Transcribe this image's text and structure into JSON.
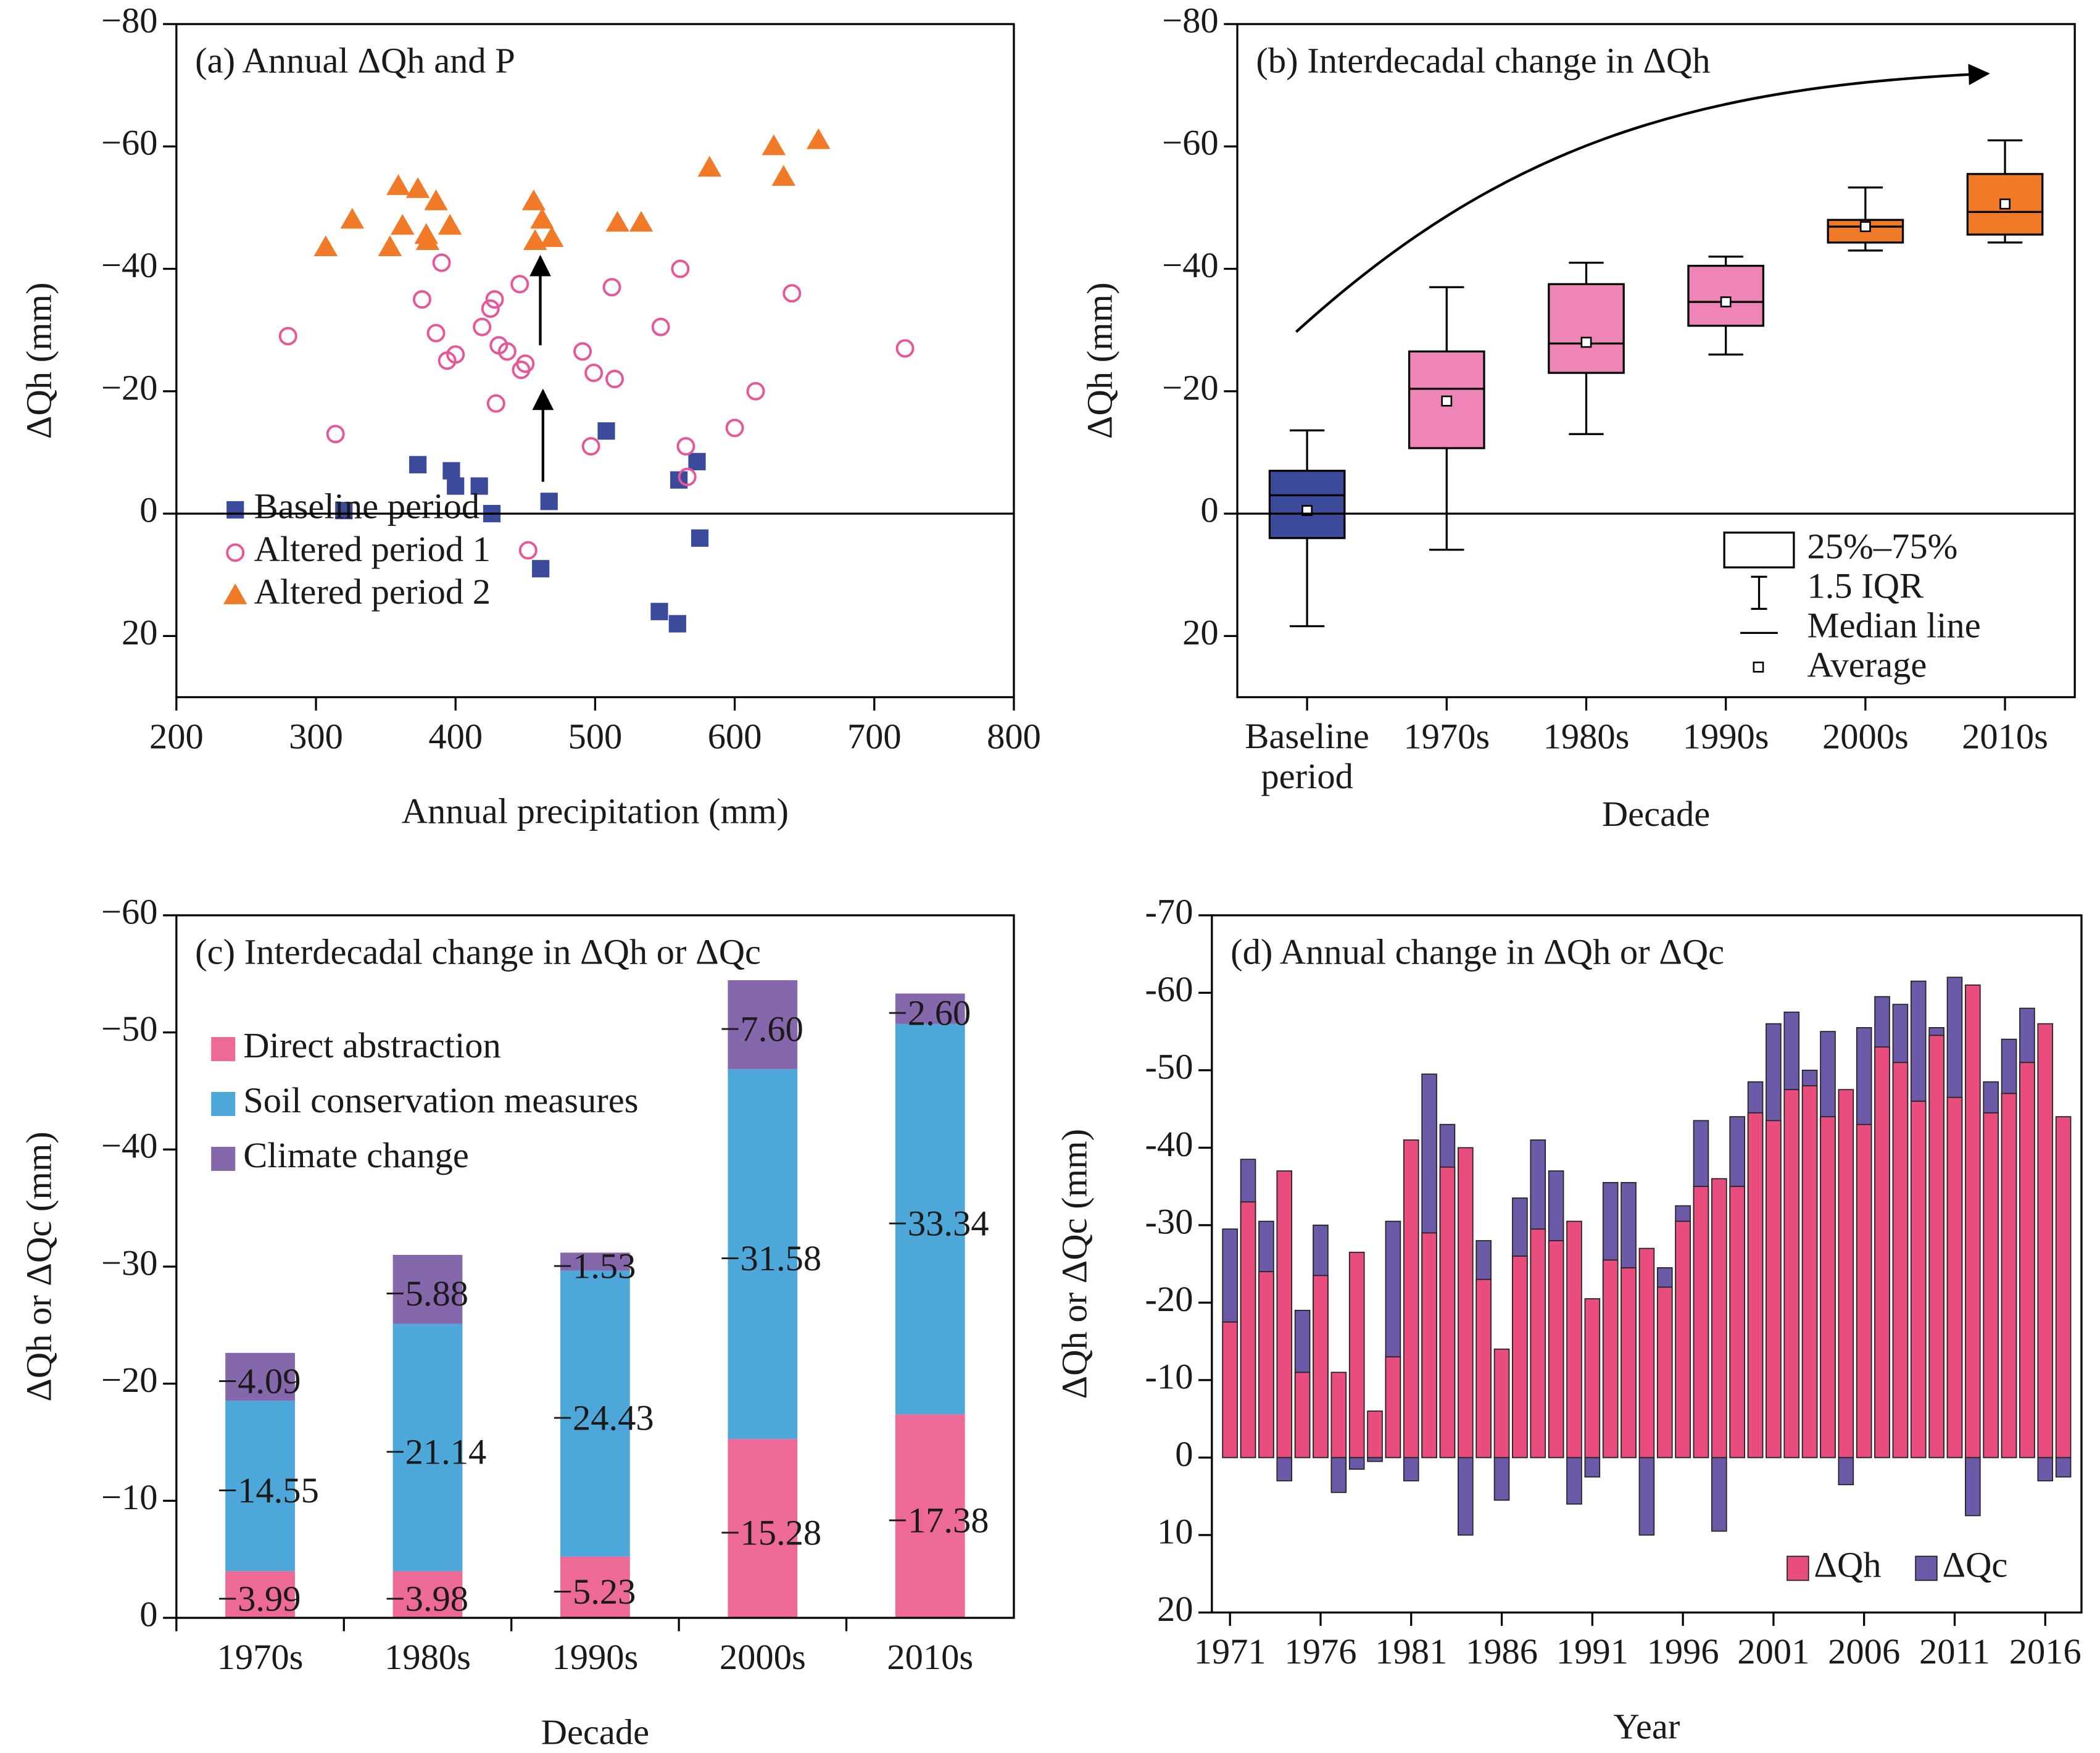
{
  "chart_data": [
    {
      "type": "scatter",
      "title": "(a) Annual ΔQh and P",
      "x_label": "Annual precipitation (mm)",
      "y_label": "ΔQh (mm)",
      "xlim": [
        200,
        800
      ],
      "xticks": [
        200,
        300,
        400,
        500,
        600,
        700,
        800
      ],
      "ylim": [
        30,
        -80
      ],
      "yticks": [
        {
          "value": -80,
          "label": "−80"
        },
        {
          "value": -60,
          "label": "−60"
        },
        {
          "value": -40,
          "label": "−40"
        },
        {
          "value": -20,
          "label": "−20"
        },
        0,
        20
      ],
      "zero_line": true,
      "legend": "lower left",
      "series": [
        {
          "name": "Baseline period",
          "color": "#3b4a9b",
          "marker": "square",
          "x": [
            320,
            373,
            397,
            400,
            417,
            426,
            467,
            461,
            508,
            546,
            559,
            560,
            573,
            575
          ],
          "y": [
            -0.5,
            -8,
            -7,
            -4.5,
            -4.5,
            0,
            -2,
            9,
            -13.5,
            16,
            18,
            -5.5,
            -8.5,
            4
          ]
        },
        {
          "name": "Altered period 1",
          "color": "#e8559a",
          "marker": "circle",
          "x": [
            280,
            314,
            376,
            386,
            390,
            394,
            400,
            419,
            425,
            429,
            428,
            431,
            437,
            446,
            447,
            450,
            452,
            491,
            497,
            499,
            512,
            514,
            547,
            561,
            565,
            566,
            600,
            615,
            641,
            722
          ],
          "y": [
            -29,
            -13,
            -35,
            -29.5,
            -41,
            -25,
            -26,
            -30.5,
            -33.5,
            -18,
            -35,
            -27.5,
            -26.5,
            -37.5,
            -23.5,
            -24.5,
            6,
            -26.5,
            -11,
            -23,
            -37,
            -22,
            -30.5,
            -40,
            -11,
            -6,
            -14,
            -20,
            -36,
            -27
          ]
        },
        {
          "name": "Altered period 2",
          "color": "#f07a28",
          "marker": "triangle",
          "x": [
            307,
            326,
            353,
            359,
            362,
            373,
            379,
            380,
            386,
            396,
            456,
            457,
            462,
            469,
            516,
            533,
            582,
            628,
            635,
            660
          ],
          "y": [
            -43.5,
            -48,
            -43.5,
            -53.5,
            -47,
            -53,
            -45.5,
            -44.5,
            -51,
            -47,
            -51,
            -44.5,
            -48,
            -45,
            -47.5,
            -47.5,
            -56.5,
            -60,
            -55,
            -61
          ]
        }
      ]
    },
    {
      "type": "box",
      "title": "(b) Interdecadal change in ΔQh",
      "x_label": "Decade",
      "y_label": "ΔQh (mm)",
      "categories": [
        "Baseline period",
        "1970s",
        "1980s",
        "1990s",
        "2000s",
        "2010s"
      ],
      "ylim": [
        30,
        -80
      ],
      "yticks": [
        {
          "value": -80,
          "label": "−80"
        },
        {
          "value": -60,
          "label": "−60"
        },
        {
          "value": -40,
          "label": "−40"
        },
        {
          "value": -20,
          "label": "−20"
        },
        0,
        20
      ],
      "zero_line": true,
      "legend": "lower right",
      "colors": [
        "#3b4a9b",
        "#ef85b6",
        "#ef85b6",
        "#ef85b6",
        "#f07a28",
        "#f07a28"
      ],
      "whisker_low": [
        18.4,
        5.9,
        -13,
        -26,
        -43,
        -44.3
      ],
      "q1": [
        4,
        -10.7,
        -23,
        -30.7,
        -44.3,
        -45.6
      ],
      "median": [
        -3,
        -20.4,
        -27.8,
        -34.6,
        -46.9,
        -49.3
      ],
      "q3": [
        -7,
        -26.5,
        -37.5,
        -40.5,
        -48,
        -55.5
      ],
      "whisker_high": [
        -13.6,
        -37,
        -41,
        -42,
        -53.3,
        -61
      ],
      "mean": [
        -0.5,
        -18.4,
        -28,
        -34.6,
        -46.9,
        -50.6
      ],
      "legend_labels": [
        "25%–75%",
        "1.5 IQR",
        "Median line",
        "Average"
      ]
    },
    {
      "type": "bar",
      "stacked": true,
      "title": "(c) Interdecadal change in ΔQh or ΔQc",
      "x_label": "Decade",
      "y_label": "ΔQh or ΔQc (mm)",
      "categories": [
        "1970s",
        "1980s",
        "1990s",
        "2000s",
        "2010s"
      ],
      "ylim": [
        0,
        -60
      ],
      "yticks": [
        0,
        {
          "value": -10,
          "label": "−10"
        },
        {
          "value": -20,
          "label": "−20"
        },
        {
          "value": -30,
          "label": "−30"
        },
        {
          "value": -40,
          "label": "−40"
        },
        {
          "value": -50,
          "label": "−50"
        },
        {
          "value": -60,
          "label": "−60"
        }
      ],
      "legend": "upper left",
      "series": [
        {
          "name": "Direct abstraction",
          "color": "#ec6a95",
          "values": [
            -3.99,
            -3.98,
            -5.23,
            -15.28,
            -17.38
          ],
          "value_labels": [
            "−3.99",
            "−3.98",
            "−5.23",
            "−15.28",
            "−17.38"
          ]
        },
        {
          "name": "Soil conservation measures",
          "color": "#4da8d9",
          "values": [
            -14.55,
            -21.14,
            -24.43,
            -31.58,
            -33.34
          ],
          "value_labels": [
            "−14.55",
            "−21.14",
            "−24.43",
            "−31.58",
            "−33.34"
          ]
        },
        {
          "name": "Climate change",
          "color": "#8567ab",
          "values": [
            -4.09,
            -5.88,
            -1.53,
            -7.6,
            -2.6
          ],
          "value_labels": [
            "−4.09",
            "−5.88",
            "−1.53",
            "−7.60",
            "−2.60"
          ]
        }
      ]
    },
    {
      "type": "bar",
      "stacked": false,
      "title": "(d) Annual change in ΔQh or ΔQc",
      "x_label": "Year",
      "y_label": "ΔQh or ΔQc (mm)",
      "x": [
        1971,
        1972,
        1973,
        1974,
        1975,
        1976,
        1977,
        1978,
        1979,
        1980,
        1981,
        1982,
        1983,
        1984,
        1985,
        1986,
        1987,
        1988,
        1989,
        1990,
        1991,
        1992,
        1993,
        1994,
        1995,
        1996,
        1997,
        1998,
        1999,
        2000,
        2001,
        2002,
        2003,
        2004,
        2005,
        2006,
        2007,
        2008,
        2009,
        2010,
        2011,
        2012,
        2013,
        2014,
        2015,
        2016,
        2017
      ],
      "xlim": [
        1970,
        2018
      ],
      "xticks": [
        1971,
        1976,
        1981,
        1986,
        1991,
        1996,
        2001,
        2006,
        2011,
        2016
      ],
      "ylim": [
        20,
        -70
      ],
      "yticks": [
        -70,
        -60,
        -50,
        -40,
        -30,
        -20,
        -10,
        0,
        10,
        20
      ],
      "legend": "lower right",
      "series": [
        {
          "name": "ΔQc",
          "color": "#6c5aa8",
          "values": [
            -29.5,
            -38.5,
            -30.5,
            3,
            -19,
            -30,
            4.5,
            1.5,
            0.5,
            -30.5,
            3,
            -49.5,
            -43,
            10,
            -28,
            5.5,
            -33.5,
            -41,
            -37,
            6,
            2.5,
            -35.5,
            -35.5,
            10,
            -24.5,
            -32.5,
            -43.5,
            9.5,
            -44,
            -48.5,
            -56,
            -57.5,
            -50,
            -55,
            3.5,
            -55.5,
            -59.5,
            -58.5,
            -61.5,
            -55.5,
            -62,
            7.5,
            -48.5,
            -54,
            -58,
            3,
            2.5
          ]
        },
        {
          "name": "ΔQh",
          "color": "#e84d7e",
          "values": [
            -17.5,
            -33,
            -24,
            -37,
            -11,
            -23.5,
            -11,
            -26.5,
            -6,
            -13,
            -41,
            -29,
            -37.5,
            -40,
            -23,
            -14,
            -26,
            -29.5,
            -28,
            -30.5,
            -20.5,
            -25.5,
            -24.5,
            -27,
            -22,
            -30.5,
            -35,
            -36,
            -35,
            -44.5,
            -43.5,
            -47.5,
            -48,
            -44,
            -47.5,
            -43,
            -53,
            -51,
            -46,
            -54.5,
            -46.5,
            -61,
            -44.5,
            -47,
            -51,
            -56,
            -44
          ]
        }
      ]
    }
  ]
}
